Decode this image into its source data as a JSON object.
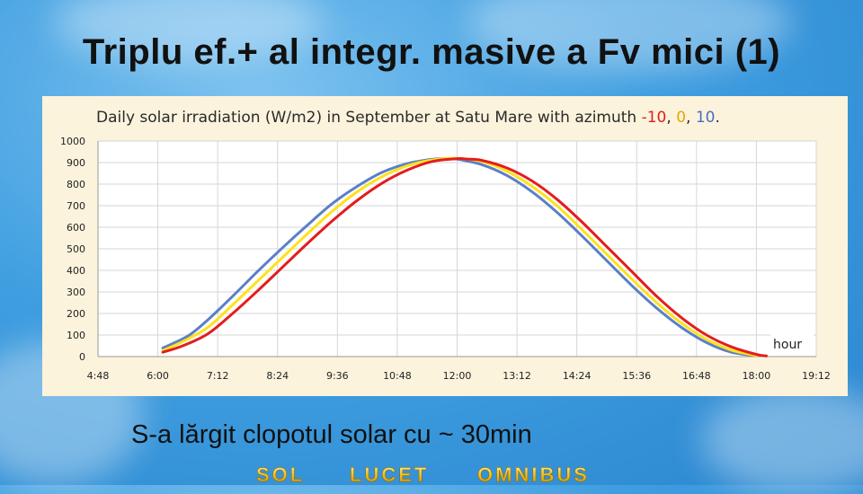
{
  "slide": {
    "title": "Triplu ef.+ al integr. masive a Fv mici (1)",
    "caption": "S-a lărgit clopotul solar cu ~ 30min",
    "motto": [
      "SOL",
      "LUCET",
      "OMNIBUS"
    ]
  },
  "colors": {
    "blue": "#5b7fc7",
    "yellow": "#ffe11a",
    "red": "#e31d1d",
    "panel": "#fbf3dc",
    "grid": "#d6d6d6"
  },
  "chart_data": {
    "type": "line",
    "title_parts": [
      {
        "text": "Daily solar irradiation (W/m2) in September at  Satu Mare  with azimuth ",
        "color": "#2a2a2a"
      },
      {
        "text": "-10",
        "color": "#e31d1d"
      },
      {
        "text": ", ",
        "color": "#2a2a2a"
      },
      {
        "text": "0",
        "color": "#e5a800"
      },
      {
        "text": ", ",
        "color": "#2a2a2a"
      },
      {
        "text": "10",
        "color": "#4a6fc0"
      },
      {
        "text": ".",
        "color": "#2a2a2a"
      }
    ],
    "xlabel": "hour",
    "ylabel": "",
    "x_ticks": [
      "4:48",
      "6:00",
      "7:12",
      "8:24",
      "9:36",
      "10:48",
      "12:00",
      "13:12",
      "14:24",
      "15:36",
      "16:48",
      "18:00",
      "19:12"
    ],
    "xlim": [
      4.8,
      19.2
    ],
    "ylim": [
      0,
      1000
    ],
    "y_ticks": [
      0,
      100,
      200,
      300,
      400,
      500,
      600,
      700,
      800,
      900,
      1000
    ],
    "grid": true,
    "series": [
      {
        "azimuth": 10,
        "color": "#5b7fc7",
        "x": [
          6.1,
          6.6,
          7.0,
          7.5,
          8.0,
          8.5,
          9.0,
          9.5,
          10.0,
          10.5,
          11.0,
          11.5,
          11.8,
          12.0,
          12.5,
          13.0,
          13.5,
          14.0,
          14.5,
          15.0,
          15.5,
          16.0,
          16.5,
          17.0,
          17.5,
          18.0
        ],
        "values": [
          40,
          95,
          170,
          280,
          395,
          505,
          610,
          710,
          790,
          855,
          895,
          915,
          918,
          916,
          890,
          840,
          765,
          670,
          560,
          445,
          330,
          225,
          135,
          65,
          20,
          5
        ]
      },
      {
        "azimuth": 0,
        "color": "#ffe11a",
        "x": [
          6.1,
          6.5,
          7.0,
          7.5,
          8.0,
          8.5,
          9.0,
          9.5,
          10.0,
          10.5,
          11.0,
          11.5,
          12.0,
          12.5,
          13.0,
          13.5,
          14.0,
          14.5,
          15.0,
          15.5,
          16.0,
          16.5,
          17.0,
          17.5,
          18.0
        ],
        "values": [
          28,
          70,
          135,
          240,
          350,
          460,
          570,
          675,
          765,
          835,
          885,
          912,
          920,
          905,
          860,
          790,
          700,
          590,
          475,
          360,
          250,
          155,
          80,
          30,
          5
        ]
      },
      {
        "azimuth": -10,
        "color": "#e31d1d",
        "x": [
          6.1,
          6.5,
          7.0,
          7.5,
          8.0,
          8.5,
          9.0,
          9.5,
          10.0,
          10.5,
          11.0,
          11.5,
          12.0,
          12.2,
          12.5,
          13.0,
          13.5,
          14.0,
          14.5,
          15.0,
          15.5,
          16.0,
          16.5,
          17.0,
          17.5,
          18.0,
          18.2
        ],
        "values": [
          20,
          50,
          105,
          200,
          305,
          415,
          525,
          630,
          725,
          805,
          865,
          905,
          918,
          916,
          910,
          875,
          815,
          730,
          625,
          510,
          395,
          280,
          180,
          100,
          45,
          10,
          3
        ]
      }
    ]
  }
}
